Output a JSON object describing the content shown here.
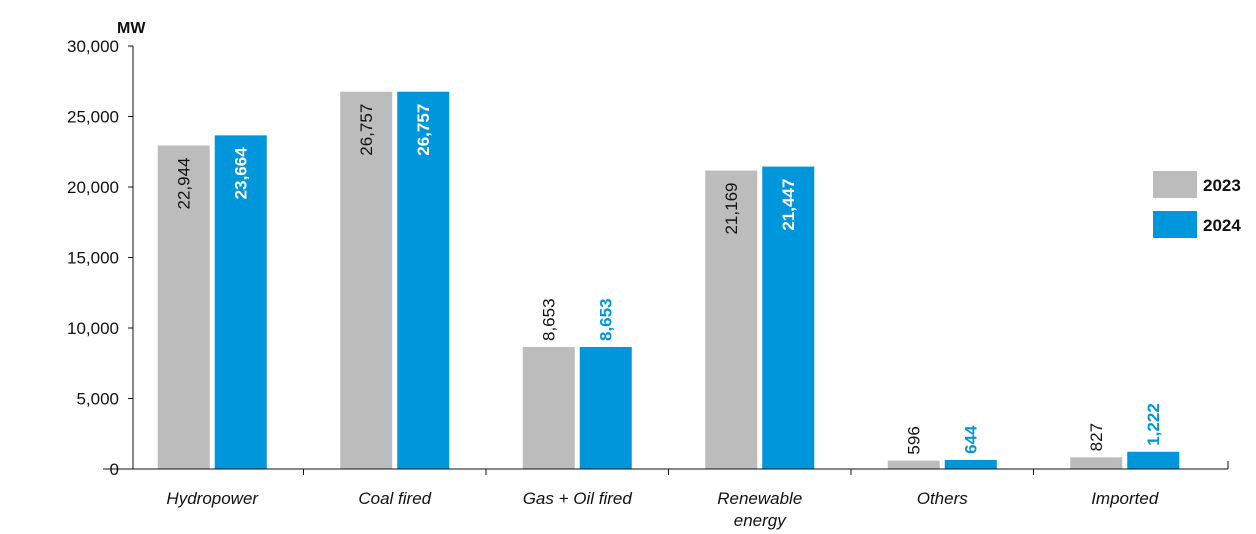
{
  "chart_data": {
    "type": "bar",
    "ylabel": "MW",
    "ylim": [
      0,
      30000
    ],
    "yticks": [
      "0",
      "5,000",
      "10,000",
      "15,000",
      "20,000",
      "25,000",
      "30,000"
    ],
    "ytick_values": [
      0,
      5000,
      10000,
      15000,
      20000,
      25000,
      30000
    ],
    "grid": false,
    "legend_position": "right",
    "categories": [
      [
        "Hydropower"
      ],
      [
        "Coal fired"
      ],
      [
        "Gas + Oil fired"
      ],
      [
        "Renewable",
        "energy"
      ],
      [
        "Others"
      ],
      [
        "Imported"
      ]
    ],
    "series": [
      {
        "name": "2023",
        "color": "#bcbcbc",
        "label_color": "#111111",
        "values": [
          22944,
          26757,
          8653,
          21169,
          596,
          827
        ],
        "labels": [
          "22,944",
          "26,757",
          "8,653",
          "21,169",
          "596",
          "827"
        ]
      },
      {
        "name": "2024",
        "color": "#0096db",
        "label_color": "#0096db",
        "values": [
          23664,
          26757,
          8653,
          21447,
          644,
          1222
        ],
        "labels": [
          "23,664",
          "26,757",
          "8,653",
          "21,447",
          "644",
          "1,222"
        ]
      }
    ]
  }
}
